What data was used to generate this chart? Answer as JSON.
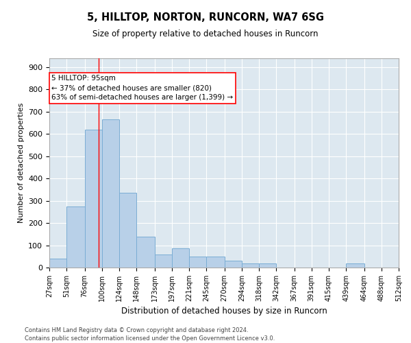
{
  "title1": "5, HILLTOP, NORTON, RUNCORN, WA7 6SG",
  "title2": "Size of property relative to detached houses in Runcorn",
  "xlabel": "Distribution of detached houses by size in Runcorn",
  "ylabel": "Number of detached properties",
  "bar_color": "#b8d0e8",
  "bar_edge_color": "#7aadd4",
  "plot_bg_color": "#dde8f0",
  "grid_color": "#ffffff",
  "vline_x": 95,
  "vline_color": "red",
  "annotation_text": "5 HILLTOP: 95sqm\n← 37% of detached houses are smaller (820)\n63% of semi-detached houses are larger (1,399) →",
  "annotation_box_color": "white",
  "annotation_box_edge_color": "red",
  "footer1": "Contains HM Land Registry data © Crown copyright and database right 2024.",
  "footer2": "Contains public sector information licensed under the Open Government Licence v3.0.",
  "bins": [
    27,
    51,
    76,
    100,
    124,
    148,
    173,
    197,
    221,
    245,
    270,
    294,
    318,
    342,
    367,
    391,
    415,
    439,
    464,
    488,
    512
  ],
  "counts": [
    40,
    275,
    620,
    665,
    335,
    140,
    60,
    85,
    50,
    50,
    30,
    20,
    20,
    0,
    0,
    0,
    0,
    20,
    0,
    0
  ],
  "ylim": [
    0,
    940
  ],
  "yticks": [
    0,
    100,
    200,
    300,
    400,
    500,
    600,
    700,
    800,
    900
  ]
}
